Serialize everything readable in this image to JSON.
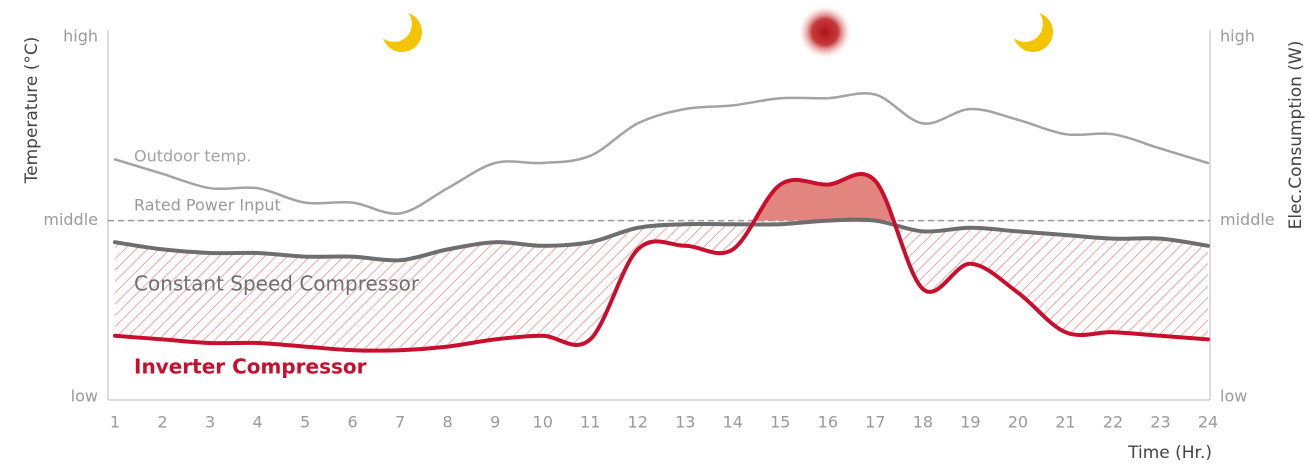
{
  "chart_data": {
    "type": "line",
    "x": [
      1,
      2,
      3,
      4,
      5,
      6,
      7,
      8,
      9,
      10,
      11,
      12,
      13,
      14,
      15,
      16,
      17,
      18,
      19,
      20,
      21,
      22,
      23,
      24
    ],
    "xlim": [
      1,
      24
    ],
    "ylim": [
      0,
      100
    ],
    "yticks": [
      {
        "value": 0,
        "label": "low"
      },
      {
        "value": 49,
        "label": "middle"
      },
      {
        "value": 100,
        "label": "high"
      }
    ],
    "y_label": "Temperature (°C)",
    "y2_label": "Elec.Consumption (W)",
    "x_label": "Time (Hr.)",
    "annotation": "Rated Power Input",
    "series": [
      {
        "name": "Outdoor temp.",
        "color": "#a3a3a3",
        "values": [
          66,
          62,
          58,
          58,
          54,
          54,
          51,
          58,
          65,
          65,
          67,
          76,
          80,
          81,
          83,
          83,
          84,
          76,
          80,
          77,
          73,
          73,
          69,
          65
        ]
      },
      {
        "name": "Constant Speed Compressor",
        "color": "#6e6e6e",
        "values": [
          43,
          41,
          40,
          40,
          39,
          39,
          38,
          41,
          43,
          42,
          43,
          47,
          48,
          48,
          48,
          49,
          49,
          46,
          47,
          46,
          45,
          44,
          44,
          42
        ]
      },
      {
        "name": "Inverter Compressor",
        "color": "#c8102e",
        "values": [
          17,
          16,
          15,
          15,
          14,
          13,
          13,
          14,
          16,
          17,
          16,
          41,
          42,
          41,
          59,
          59,
          60,
          30,
          37,
          29,
          18,
          18,
          17,
          16
        ]
      }
    ]
  }
}
